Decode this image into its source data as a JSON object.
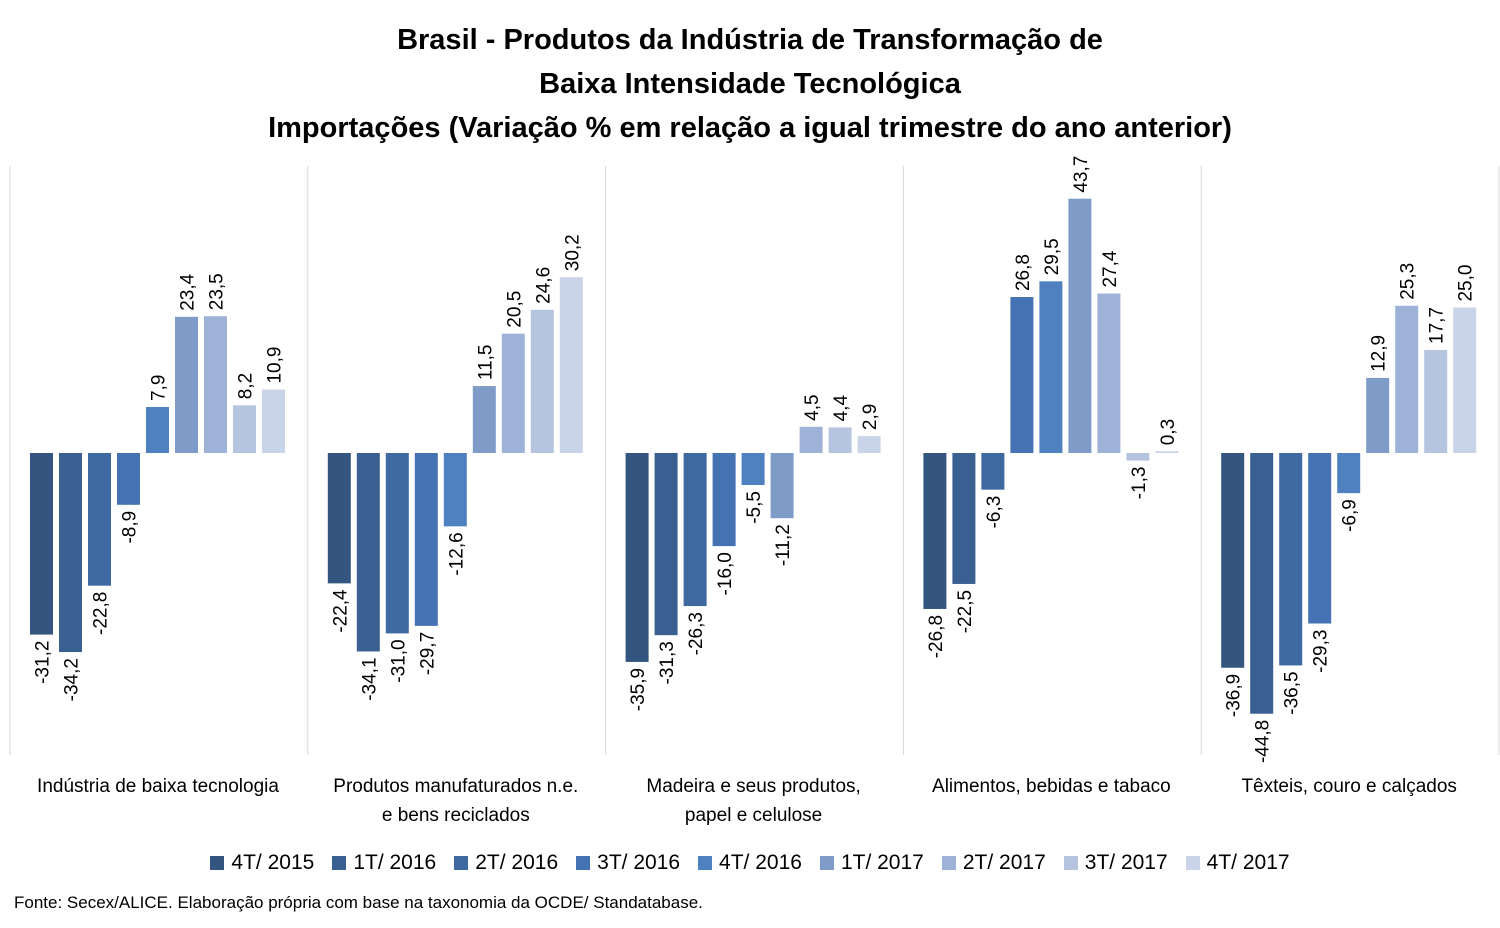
{
  "chart_data": {
    "type": "bar",
    "title_lines": [
      "Brasil - Produtos da Indústria de Transformação de",
      "Baixa Intensidade Tecnológica",
      "Importações (Variação % em relação a igual trimestre do ano anterior)"
    ],
    "categories": [
      [
        "Indústria de baixa tecnologia"
      ],
      [
        "Produtos manufaturados n.e.",
        "e bens reciclados"
      ],
      [
        "Madeira e seus produtos,",
        "papel e celulose"
      ],
      [
        "Alimentos, bebidas e tabaco"
      ],
      [
        "Têxteis, couro e calçados"
      ]
    ],
    "series": [
      {
        "name": "4T/ 2015",
        "color": "#345580",
        "values": [
          -31.2,
          -22.4,
          -35.9,
          -26.8,
          -36.9
        ]
      },
      {
        "name": "1T/ 2016",
        "color": "#3a5f91",
        "values": [
          -34.2,
          -34.1,
          -31.3,
          -22.5,
          -44.8
        ]
      },
      {
        "name": "2T/ 2016",
        "color": "#3f69a1",
        "values": [
          -22.8,
          -31.0,
          -26.3,
          -6.3,
          -36.5
        ]
      },
      {
        "name": "3T/ 2016",
        "color": "#4472b2",
        "values": [
          -8.9,
          -29.7,
          -16.0,
          26.8,
          -29.3
        ]
      },
      {
        "name": "4T/ 2016",
        "color": "#4f81c0",
        "values": [
          7.9,
          -12.6,
          -5.5,
          29.5,
          -6.9
        ]
      },
      {
        "name": "1T/ 2017",
        "color": "#7f9cc9",
        "values": [
          23.4,
          11.5,
          -11.2,
          43.7,
          12.9
        ]
      },
      {
        "name": "2T/ 2017",
        "color": "#9db2d6",
        "values": [
          23.5,
          20.5,
          4.5,
          27.4,
          25.3
        ]
      },
      {
        "name": "3T/ 2017",
        "color": "#b5c5e0",
        "values": [
          8.2,
          24.6,
          4.4,
          -1.3,
          17.7
        ]
      },
      {
        "name": "4T/ 2017",
        "color": "#c9d4e8",
        "values": [
          10.9,
          30.2,
          2.9,
          0.3,
          25.0
        ]
      }
    ],
    "ylim": [
      -48,
      50
    ],
    "grid": false,
    "legend_position": "bottom",
    "source": "Fonte: Secex/ALICE. Elaboração própria com base na taxonomia da OCDE/ Standatabase."
  }
}
